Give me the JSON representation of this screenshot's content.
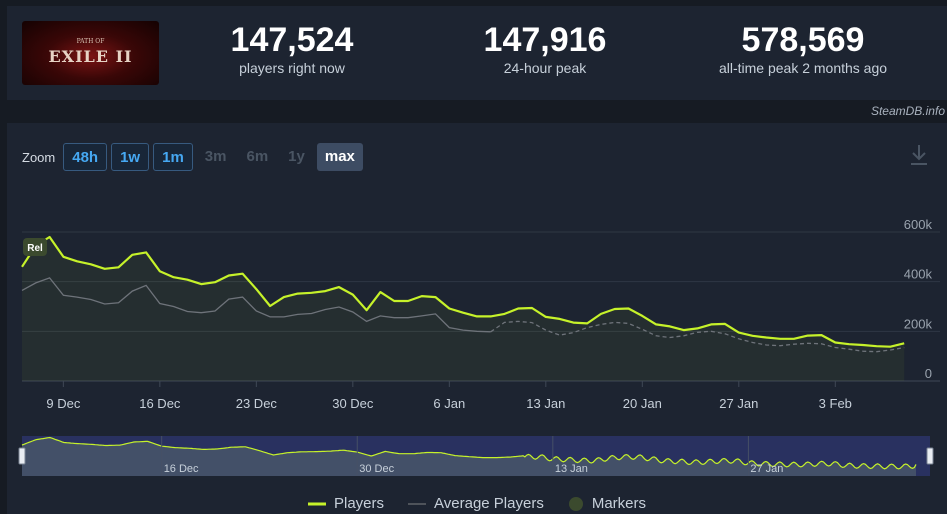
{
  "game": {
    "logo_subtitle": "PATH OF",
    "logo_title": "EXILE II"
  },
  "stats": [
    {
      "value": "147,524",
      "label": "players right now"
    },
    {
      "value": "147,916",
      "label": "24-hour peak"
    },
    {
      "value": "578,569",
      "label": "all-time peak 2 months ago"
    }
  ],
  "credit": "SteamDB.info",
  "zoom": {
    "label": "Zoom",
    "options": [
      {
        "label": "48h",
        "state": "enabled"
      },
      {
        "label": "1w",
        "state": "enabled"
      },
      {
        "label": "1m",
        "state": "enabled"
      },
      {
        "label": "3m",
        "state": "disabled"
      },
      {
        "label": "6m",
        "state": "disabled"
      },
      {
        "label": "1y",
        "state": "disabled"
      },
      {
        "label": "max",
        "state": "selected"
      }
    ]
  },
  "colors": {
    "players": "#c6f22a",
    "average": "#8a8f96",
    "marker": "#3b4a2e"
  },
  "chart_data": {
    "type": "line",
    "x_unit": "date",
    "x_start": "2024-12-06",
    "x_end": "2025-02-09",
    "xticks": [
      "9 Dec",
      "16 Dec",
      "23 Dec",
      "30 Dec",
      "6 Jan",
      "13 Jan",
      "20 Jan",
      "27 Jan",
      "3 Feb"
    ],
    "yticks": [
      "0",
      "200k",
      "400k",
      "600k"
    ],
    "ylim": [
      0,
      600000
    ],
    "grid": true,
    "series": [
      {
        "name": "Players",
        "style": "solid",
        "points": [
          [
            "2024-12-06",
            460000
          ],
          [
            "2024-12-07",
            545000
          ],
          [
            "2024-12-08",
            580000
          ],
          [
            "2024-12-09",
            500000
          ],
          [
            "2024-12-10",
            482000
          ],
          [
            "2024-12-11",
            470000
          ],
          [
            "2024-12-12",
            452000
          ],
          [
            "2024-12-13",
            458000
          ],
          [
            "2024-12-14",
            508000
          ],
          [
            "2024-12-15",
            518000
          ],
          [
            "2024-12-16",
            442000
          ],
          [
            "2024-12-17",
            418000
          ],
          [
            "2024-12-18",
            408000
          ],
          [
            "2024-12-19",
            390000
          ],
          [
            "2024-12-20",
            398000
          ],
          [
            "2024-12-21",
            425000
          ],
          [
            "2024-12-22",
            432000
          ],
          [
            "2024-12-23",
            370000
          ],
          [
            "2024-12-24",
            302000
          ],
          [
            "2024-12-25",
            338000
          ],
          [
            "2024-12-26",
            352000
          ],
          [
            "2024-12-27",
            355000
          ],
          [
            "2024-12-28",
            362000
          ],
          [
            "2024-12-29",
            378000
          ],
          [
            "2024-12-30",
            348000
          ],
          [
            "2024-12-31",
            285000
          ],
          [
            "2025-01-01",
            358000
          ],
          [
            "2025-01-02",
            322000
          ],
          [
            "2025-01-03",
            322000
          ],
          [
            "2025-01-04",
            342000
          ],
          [
            "2025-01-05",
            338000
          ],
          [
            "2025-01-06",
            292000
          ],
          [
            "2025-01-07",
            275000
          ],
          [
            "2025-01-08",
            260000
          ],
          [
            "2025-01-09",
            260000
          ],
          [
            "2025-01-10",
            270000
          ],
          [
            "2025-01-11",
            292000
          ],
          [
            "2025-01-12",
            294000
          ],
          [
            "2025-01-13",
            258000
          ],
          [
            "2025-01-14",
            250000
          ],
          [
            "2025-01-15",
            235000
          ],
          [
            "2025-01-16",
            232000
          ],
          [
            "2025-01-17",
            270000
          ],
          [
            "2025-01-18",
            290000
          ],
          [
            "2025-01-19",
            292000
          ],
          [
            "2025-01-20",
            262000
          ],
          [
            "2025-01-21",
            228000
          ],
          [
            "2025-01-22",
            220000
          ],
          [
            "2025-01-23",
            205000
          ],
          [
            "2025-01-24",
            212000
          ],
          [
            "2025-01-25",
            228000
          ],
          [
            "2025-01-26",
            230000
          ],
          [
            "2025-01-27",
            195000
          ],
          [
            "2025-01-28",
            182000
          ],
          [
            "2025-01-29",
            175000
          ],
          [
            "2025-01-30",
            170000
          ],
          [
            "2025-01-31",
            170000
          ],
          [
            "2025-02-01",
            183000
          ],
          [
            "2025-02-02",
            185000
          ],
          [
            "2025-02-03",
            155000
          ],
          [
            "2025-02-04",
            148000
          ],
          [
            "2025-02-05",
            145000
          ],
          [
            "2025-02-06",
            140000
          ],
          [
            "2025-02-07",
            138000
          ],
          [
            "2025-02-08",
            152000
          ]
        ]
      },
      {
        "name": "Average Players",
        "style": "solid-then-dashed",
        "dash_from": "2025-01-09",
        "points": [
          [
            "2024-12-06",
            365000
          ],
          [
            "2024-12-07",
            395000
          ],
          [
            "2024-12-08",
            415000
          ],
          [
            "2024-12-09",
            345000
          ],
          [
            "2024-12-10",
            338000
          ],
          [
            "2024-12-11",
            328000
          ],
          [
            "2024-12-12",
            310000
          ],
          [
            "2024-12-13",
            315000
          ],
          [
            "2024-12-14",
            362000
          ],
          [
            "2024-12-15",
            385000
          ],
          [
            "2024-12-16",
            312000
          ],
          [
            "2024-12-17",
            300000
          ],
          [
            "2024-12-18",
            280000
          ],
          [
            "2024-12-19",
            275000
          ],
          [
            "2024-12-20",
            282000
          ],
          [
            "2024-12-21",
            330000
          ],
          [
            "2024-12-22",
            338000
          ],
          [
            "2024-12-23",
            282000
          ],
          [
            "2024-12-24",
            258000
          ],
          [
            "2024-12-25",
            258000
          ],
          [
            "2024-12-26",
            268000
          ],
          [
            "2024-12-27",
            272000
          ],
          [
            "2024-12-28",
            288000
          ],
          [
            "2024-12-29",
            298000
          ],
          [
            "2024-12-30",
            278000
          ],
          [
            "2024-12-31",
            240000
          ],
          [
            "2025-01-01",
            262000
          ],
          [
            "2025-01-02",
            255000
          ],
          [
            "2025-01-03",
            255000
          ],
          [
            "2025-01-04",
            262000
          ],
          [
            "2025-01-05",
            270000
          ],
          [
            "2025-01-06",
            215000
          ],
          [
            "2025-01-07",
            205000
          ],
          [
            "2025-01-08",
            200000
          ],
          [
            "2025-01-09",
            198000
          ],
          [
            "2025-01-10",
            236000
          ],
          [
            "2025-01-11",
            240000
          ],
          [
            "2025-01-12",
            235000
          ],
          [
            "2025-01-13",
            205000
          ],
          [
            "2025-01-14",
            185000
          ],
          [
            "2025-01-15",
            195000
          ],
          [
            "2025-01-16",
            215000
          ],
          [
            "2025-01-17",
            228000
          ],
          [
            "2025-01-18",
            236000
          ],
          [
            "2025-01-19",
            232000
          ],
          [
            "2025-01-20",
            208000
          ],
          [
            "2025-01-21",
            182000
          ],
          [
            "2025-01-22",
            175000
          ],
          [
            "2025-01-23",
            182000
          ],
          [
            "2025-01-24",
            196000
          ],
          [
            "2025-01-25",
            200000
          ],
          [
            "2025-01-26",
            190000
          ],
          [
            "2025-01-27",
            170000
          ],
          [
            "2025-01-28",
            155000
          ],
          [
            "2025-01-29",
            145000
          ],
          [
            "2025-01-30",
            142000
          ],
          [
            "2025-01-31",
            148000
          ],
          [
            "2025-02-01",
            152000
          ],
          [
            "2025-02-02",
            150000
          ],
          [
            "2025-02-03",
            135000
          ],
          [
            "2025-02-04",
            128000
          ],
          [
            "2025-02-05",
            120000
          ],
          [
            "2025-02-06",
            118000
          ],
          [
            "2025-02-07",
            125000
          ],
          [
            "2025-02-08",
            135000
          ]
        ]
      }
    ],
    "markers": [
      {
        "label": "Rel",
        "x": "2024-12-06"
      }
    ],
    "navigator": {
      "xticks": [
        "16 Dec",
        "30 Dec",
        "13 Jan",
        "27 Jan"
      ]
    },
    "legend": [
      {
        "label": "Players",
        "kind": "line"
      },
      {
        "label": "Average Players",
        "kind": "line"
      },
      {
        "label": "Markers",
        "kind": "dot"
      }
    ]
  }
}
